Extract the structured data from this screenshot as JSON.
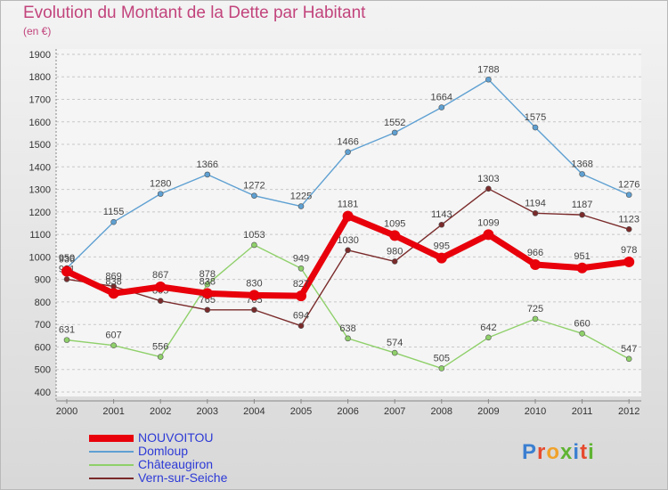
{
  "header": {
    "title": "Evolution du Montant de la Dette par Habitant",
    "subtitle": "(en €)"
  },
  "logo": {
    "text": "Proxiti",
    "colors": [
      "#3b7fd1",
      "#e64a2e",
      "#f0a22a",
      "#5fb432",
      "#3b7fd1",
      "#e64a2e",
      "#5fb432"
    ]
  },
  "chart_data": {
    "type": "line",
    "title": "Evolution du Montant de la Dette par Habitant",
    "ylabel": "(en €)",
    "xlabel": "",
    "x": [
      "2000",
      "2001",
      "2002",
      "2003",
      "2004",
      "2005",
      "2006",
      "2007",
      "2008",
      "2009",
      "2010",
      "2011",
      "2012"
    ],
    "ylim": [
      400,
      1900
    ],
    "yticks": [
      400,
      500,
      600,
      700,
      800,
      900,
      1000,
      1100,
      1200,
      1300,
      1400,
      1500,
      1600,
      1700,
      1800,
      1900
    ],
    "grid": "horizontal dashed",
    "legend": "bottom-left",
    "series": [
      {
        "name": "NOUVOITOU",
        "color": "#e8000b",
        "values": [
          936,
          838,
          867,
          838,
          830,
          827,
          1181,
          1095,
          995,
          1099,
          966,
          951,
          978
        ]
      },
      {
        "name": "Domloup",
        "color": "#5ea0d2",
        "values": [
          950,
          1155,
          1280,
          1366,
          1272,
          1225,
          1466,
          1552,
          1664,
          1788,
          1575,
          1368,
          1276
        ]
      },
      {
        "name": "Châteaugiron",
        "color": "#8fd06a",
        "values": [
          631,
          607,
          556,
          878,
          1053,
          949,
          638,
          574,
          505,
          642,
          725,
          660,
          547
        ]
      },
      {
        "name": "Vern-sur-Seiche",
        "color": "#7a2a2a",
        "values": [
          901,
          869,
          805,
          765,
          765,
          694,
          1030,
          980,
          1143,
          1303,
          1194,
          1187,
          1123
        ]
      }
    ]
  }
}
